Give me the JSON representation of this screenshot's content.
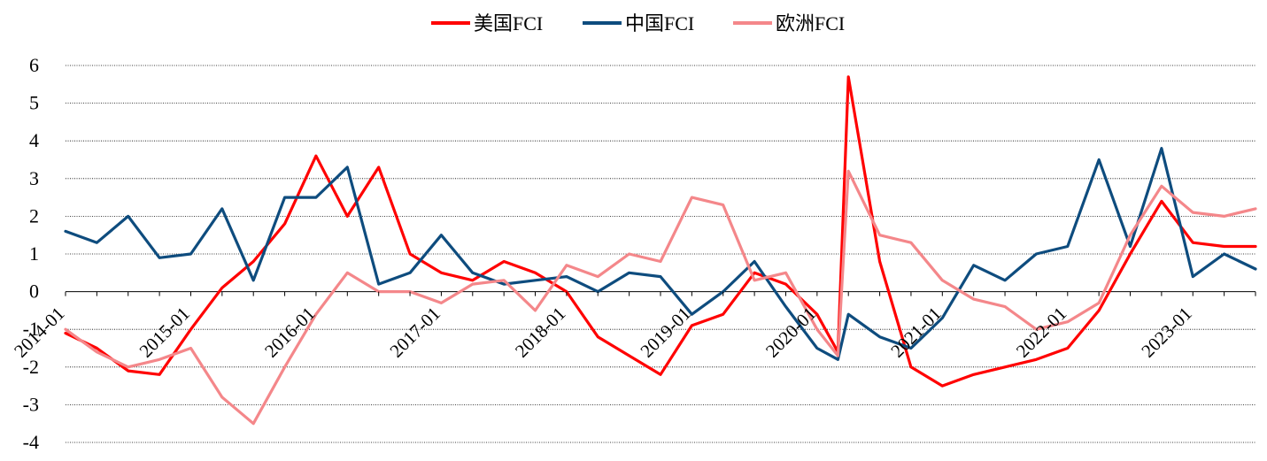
{
  "chart_data": {
    "type": "line",
    "title": "",
    "xlabel": "",
    "ylabel": "",
    "ylim": [
      -4,
      6
    ],
    "yticks": [
      6,
      5,
      4,
      3,
      2,
      1,
      0,
      -1,
      -2,
      -3,
      -4
    ],
    "ytick_labels": [
      "6",
      "5",
      "4",
      "3",
      "2",
      "1",
      "0",
      "-1",
      "-2",
      "-3",
      "-4"
    ],
    "xlim": [
      "2014-01",
      "2023-07"
    ],
    "x_tick_labels": [
      "2014-01",
      "2015-01",
      "2016-01",
      "2017-01",
      "2018-01",
      "2019-01",
      "2020-01",
      "2021-01",
      "2022-01",
      "2023-01"
    ],
    "grid": "horizontal-dotted",
    "legend": "top-center",
    "x": [
      "2014-01",
      "2014-04",
      "2014-07",
      "2014-10",
      "2015-01",
      "2015-04",
      "2015-07",
      "2015-10",
      "2016-01",
      "2016-04",
      "2016-07",
      "2016-10",
      "2017-01",
      "2017-04",
      "2017-07",
      "2017-10",
      "2018-01",
      "2018-04",
      "2018-07",
      "2018-10",
      "2019-01",
      "2019-04",
      "2019-07",
      "2019-10",
      "2020-01",
      "2020-03",
      "2020-04",
      "2020-07",
      "2020-10",
      "2021-01",
      "2021-04",
      "2021-07",
      "2021-10",
      "2022-01",
      "2022-04",
      "2022-07",
      "2022-10",
      "2023-01",
      "2023-04",
      "2023-07"
    ],
    "series": [
      {
        "name": "美国FCI",
        "color": "#FF0000",
        "values": [
          -1.1,
          -1.5,
          -2.1,
          -2.2,
          -1.0,
          0.1,
          0.8,
          1.8,
          3.6,
          2.0,
          3.3,
          1.0,
          0.5,
          0.3,
          0.8,
          0.5,
          0.0,
          -1.2,
          -1.7,
          -2.2,
          -0.9,
          -0.6,
          0.5,
          0.2,
          -0.6,
          -1.6,
          5.7,
          0.8,
          -2.0,
          -2.5,
          -2.2,
          -2.0,
          -1.8,
          -1.5,
          -0.5,
          1.0,
          2.4,
          1.3,
          1.2,
          1.2
        ]
      },
      {
        "name": "中国FCI",
        "color": "#0E4C7E",
        "values": [
          1.6,
          1.3,
          2.0,
          0.9,
          1.0,
          2.2,
          0.3,
          2.5,
          2.5,
          3.3,
          0.2,
          0.5,
          1.5,
          0.5,
          0.2,
          0.3,
          0.4,
          0.0,
          0.5,
          0.4,
          -0.6,
          0.0,
          0.8,
          -0.4,
          -1.5,
          -1.8,
          -0.6,
          -1.2,
          -1.5,
          -0.7,
          0.7,
          0.3,
          1.0,
          1.2,
          3.5,
          1.2,
          3.8,
          0.4,
          1.0,
          0.6
        ]
      },
      {
        "name": "欧洲FCI",
        "color": "#F4878A",
        "values": [
          -1.0,
          -1.6,
          -2.0,
          -1.8,
          -1.5,
          -2.8,
          -3.5,
          -2.0,
          -0.6,
          0.5,
          0.0,
          0.0,
          -0.3,
          0.2,
          0.3,
          -0.5,
          0.7,
          0.4,
          1.0,
          0.8,
          2.5,
          2.3,
          0.3,
          0.5,
          -1.0,
          -1.7,
          3.2,
          1.5,
          1.3,
          0.3,
          -0.2,
          -0.4,
          -1.0,
          -0.8,
          -0.3,
          1.5,
          2.8,
          2.1,
          2.0,
          2.2
        ]
      }
    ]
  }
}
